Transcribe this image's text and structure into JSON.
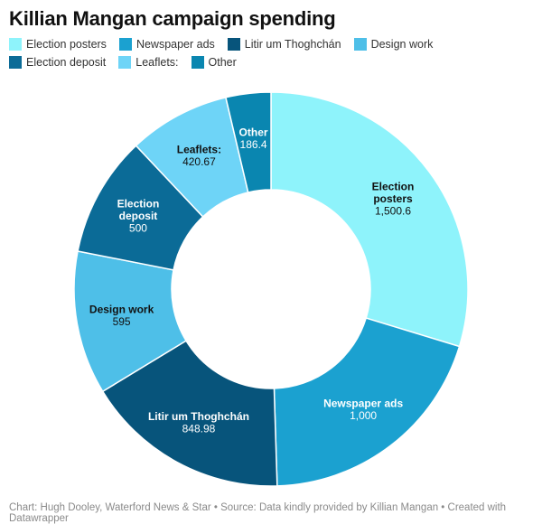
{
  "chart_data": {
    "type": "pie",
    "variant": "donut",
    "title": "Killian Mangan campaign spending",
    "categories": [
      "Election posters",
      "Newspaper ads",
      "Litir um Thoghchán",
      "Design work",
      "Election deposit",
      "Leaflets:",
      "Other"
    ],
    "values": [
      1500.6,
      1000,
      848.98,
      595,
      500,
      420.67,
      186.4
    ],
    "value_labels": [
      "1,500.6",
      "1,000",
      "848.98",
      "595",
      "500",
      "420.67",
      "186.4"
    ],
    "slice_label_lines": [
      [
        "Election",
        "posters"
      ],
      [
        "Newspaper ads"
      ],
      [
        "Litir um Thoghchán"
      ],
      [
        "Design work"
      ],
      [
        "Election",
        "deposit"
      ],
      [
        "Leaflets:"
      ],
      [
        "Other"
      ]
    ],
    "colors": [
      "#8ef3fb",
      "#1ba1d0",
      "#07547b",
      "#4ebfe8",
      "#0b6b97",
      "#6ed4f7",
      "#0a86b0"
    ],
    "label_colors": [
      "#111111",
      "#ffffff",
      "#ffffff",
      "#111111",
      "#ffffff",
      "#111111",
      "#ffffff"
    ],
    "legend_position": "top-left",
    "footer": "Chart: Hugh Dooley, Waterford News & Star • Source: Data kindly provided by Killian Mangan • Created with Datawrapper"
  }
}
